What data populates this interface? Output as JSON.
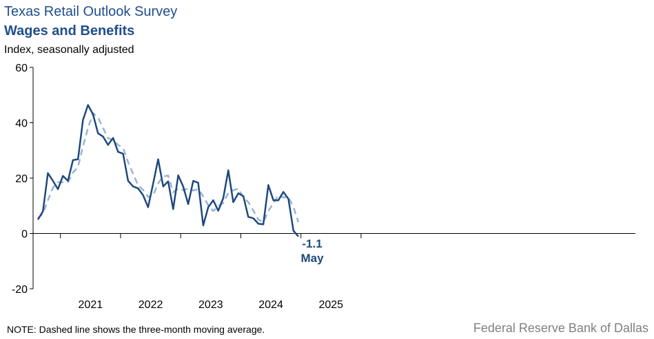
{
  "header": {
    "title": "Texas Retail Outlook Survey",
    "subtitle": "Wages and Benefits",
    "ylabel": "Index, seasonally adjusted"
  },
  "footer": {
    "note": "NOTE: Dashed line shows the three-month  moving average.",
    "source": "Federal Reserve Bank of Dallas"
  },
  "colors": {
    "index": "#1f497d",
    "moving_average": "#95b3d7",
    "title": "#1f4e8c"
  },
  "chart_data": {
    "type": "line",
    "title": "Wages and Benefits",
    "ylabel": "Index, seasonally adjusted",
    "ylim": [
      -20,
      60
    ],
    "yticks": [
      60,
      40,
      20,
      0,
      -20
    ],
    "x_tick_labels": [
      "2021",
      "2022",
      "2023",
      "2024",
      "2025"
    ],
    "x_start": "2020-08",
    "x_end": "2025-05",
    "grid": false,
    "legend": "none",
    "series": [
      {
        "style": "solid",
        "values": [
          5.0,
          8.0,
          21.8,
          19.0,
          16.0,
          20.8,
          19.0,
          26.5,
          26.8,
          41.0,
          46.4,
          43.0,
          36.2,
          35.0,
          32.0,
          34.5,
          29.5,
          28.8,
          19.0,
          17.0,
          16.3,
          13.8,
          9.5,
          18.0,
          26.8,
          17.0,
          18.8,
          8.8,
          21.0,
          17.0,
          10.6,
          19.0,
          18.3,
          2.9,
          9.5,
          12.0,
          8.2,
          12.8,
          22.8,
          11.3,
          14.5,
          13.5,
          6.0,
          5.5,
          3.5,
          3.3,
          17.5,
          12.0,
          12.0,
          15.0,
          12.5,
          1.0,
          -1.1
        ]
      },
      {
        "style": "dashed",
        "values": [
          5.5,
          7.2,
          12.0,
          16.5,
          18.5,
          18.5,
          18.5,
          22.0,
          24.0,
          31.5,
          38.1,
          43.5,
          41.9,
          38.1,
          34.4,
          33.8,
          32.0,
          30.9,
          25.8,
          21.6,
          17.4,
          15.7,
          13.2,
          13.8,
          18.1,
          20.6,
          20.9,
          14.9,
          16.2,
          15.6,
          16.2,
          15.5,
          16.0,
          13.4,
          10.2,
          8.1,
          9.9,
          11.0,
          14.6,
          15.6,
          16.2,
          13.1,
          11.3,
          8.3,
          5.0,
          4.1,
          8.1,
          10.9,
          13.8,
          13.0,
          13.2,
          9.5,
          4.1
        ]
      }
    ],
    "annotations": [
      {
        "value_label": "-1.1",
        "month_label": "May"
      }
    ]
  }
}
